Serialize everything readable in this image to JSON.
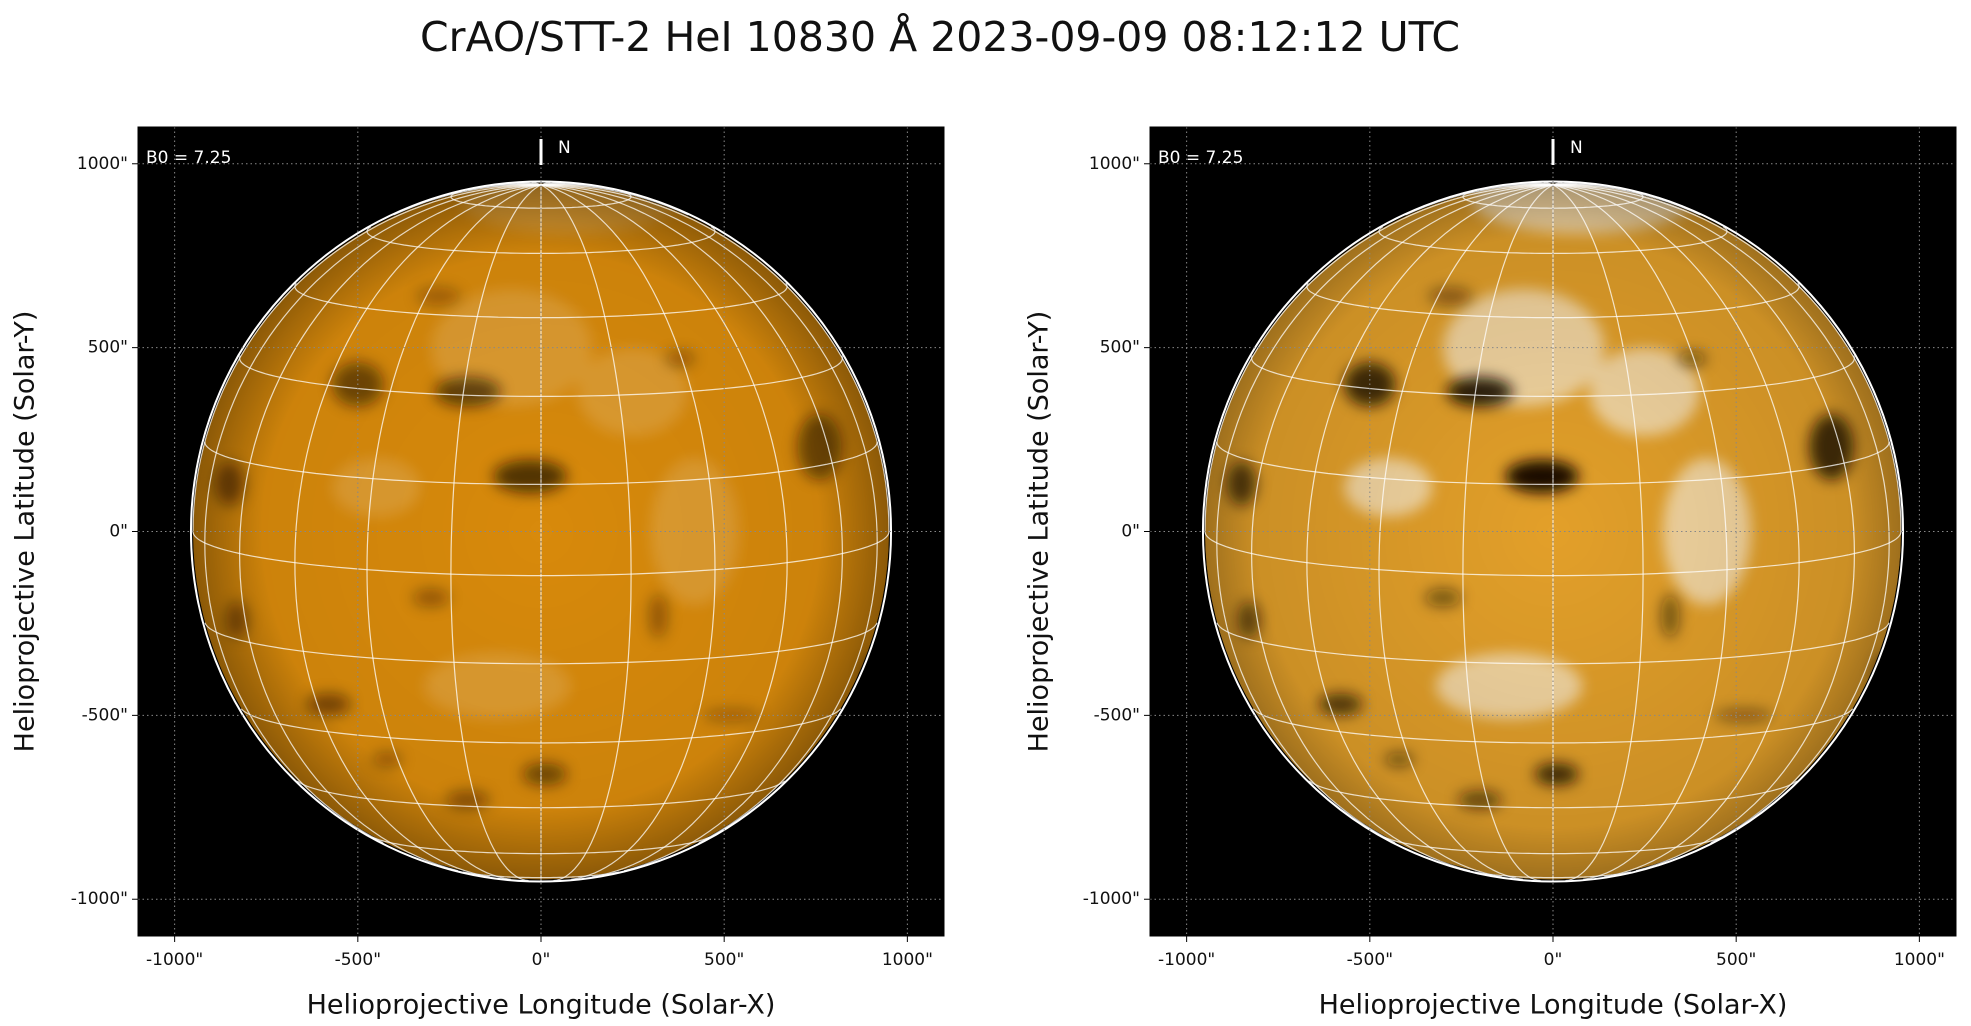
{
  "title": "CrAO/STT-2 HeI 10830 Å 2023-09-09 08:12:12 UTC",
  "chart_data": [
    {
      "type": "image",
      "color": "#d88a0c",
      "xlabel": "Helioprojective Longitude (Solar-X)",
      "ylabel": "Helioprojective Latitude (Solar-Y)",
      "xlim": [
        -1100,
        1100
      ],
      "ylim": [
        -1100,
        1100
      ],
      "xticks": [
        {
          "value": -1000,
          "label": "-1000\""
        },
        {
          "value": -500,
          "label": "-500\""
        },
        {
          "value": 0,
          "label": "0\""
        },
        {
          "value": 500,
          "label": "500\""
        },
        {
          "value": 1000,
          "label": "1000\""
        }
      ],
      "yticks": [
        {
          "value": -1000,
          "label": "-1000\""
        },
        {
          "value": -500,
          "label": "-500\""
        },
        {
          "value": 0,
          "label": "0\""
        },
        {
          "value": 500,
          "label": "500\""
        },
        {
          "value": 1000,
          "label": "1000\""
        }
      ],
      "grid": true,
      "b0": {
        "value": 7.25,
        "label": "B0 = 7.25"
      },
      "north_label": "N"
    },
    {
      "type": "image",
      "color": "#e3a02a",
      "xlabel": "Helioprojective Longitude (Solar-X)",
      "ylabel": "Helioprojective Latitude (Solar-Y)",
      "xlim": [
        -1100,
        1100
      ],
      "ylim": [
        -1100,
        1100
      ],
      "xticks": [
        {
          "value": -1000,
          "label": "-1000\""
        },
        {
          "value": -500,
          "label": "-500\""
        },
        {
          "value": 0,
          "label": "0\""
        },
        {
          "value": 500,
          "label": "500\""
        },
        {
          "value": 1000,
          "label": "1000\""
        }
      ],
      "yticks": [
        {
          "value": -1000,
          "label": "-1000\""
        },
        {
          "value": -500,
          "label": "-500\""
        },
        {
          "value": 0,
          "label": "0\""
        },
        {
          "value": 500,
          "label": "500\""
        },
        {
          "value": 1000,
          "label": "1000\""
        }
      ],
      "grid": true,
      "b0": {
        "value": 7.25,
        "label": "B0 = 7.25"
      },
      "north_label": "N"
    }
  ]
}
